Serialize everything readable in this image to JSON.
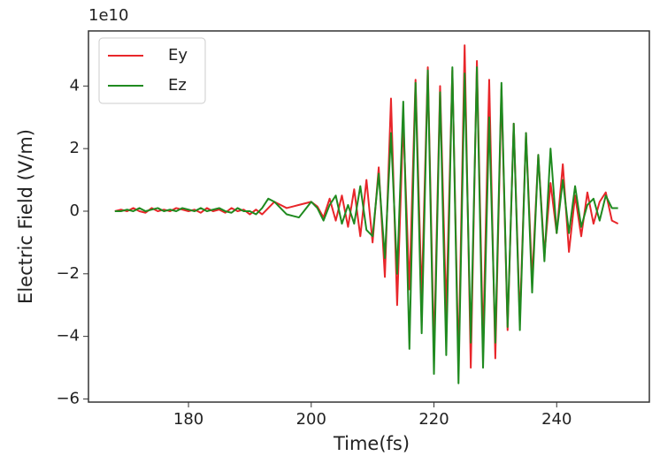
{
  "chart_data": {
    "type": "line",
    "x_label": "Time(fs)",
    "y_label": "Electric Field (V/m)",
    "y_offset_label": "1e10",
    "x": [
      168,
      169,
      170,
      171,
      172,
      173,
      174,
      175,
      176,
      177,
      178,
      179,
      180,
      181,
      182,
      183,
      184,
      185,
      186,
      187,
      188,
      189,
      190,
      191,
      192,
      193,
      194,
      195,
      196,
      197,
      198,
      199,
      200,
      201,
      202,
      203,
      204,
      205,
      206,
      207,
      208,
      209,
      210,
      211,
      212,
      213,
      214,
      215,
      216,
      217,
      218,
      219,
      220,
      221,
      222,
      223,
      224,
      225,
      226,
      227,
      228,
      229,
      230,
      231,
      232,
      233,
      234,
      235,
      236,
      237,
      238,
      239,
      240,
      241,
      242,
      243,
      244,
      245,
      246,
      247,
      248,
      249,
      250
    ],
    "series": [
      {
        "name": "Ey",
        "color": "#e8262a",
        "values": [
          0,
          0.05,
          0,
          0.1,
          0,
          -0.05,
          0.1,
          0,
          0.05,
          0,
          0.1,
          0.05,
          0,
          0.05,
          -0.05,
          0.1,
          0,
          0.05,
          -0.05,
          0.1,
          0,
          0.05,
          -0.1,
          0.05,
          -0.1,
          0.1,
          0.3,
          0.2,
          0.1,
          0.15,
          0.2,
          0.25,
          0.3,
          0.15,
          -0.2,
          0.4,
          -0.3,
          0.5,
          -0.5,
          0.7,
          -0.8,
          1.0,
          -1.0,
          1.4,
          -2.1,
          3.6,
          -3.0,
          2.9,
          -2.5,
          4.2,
          -2.8,
          4.6,
          -4.5,
          4.0,
          -3.3,
          4.5,
          -4.9,
          5.3,
          -5.0,
          4.8,
          -4.3,
          4.2,
          -4.7,
          3.9,
          -3.8,
          2.8,
          -3.5,
          2.5,
          -2.2,
          1.8,
          -1.4,
          0.9,
          -0.7,
          1.5,
          -1.3,
          0.5,
          -0.8,
          0.6,
          -0.4,
          0.3,
          0.6,
          -0.3,
          -0.4
        ]
      },
      {
        "name": "Ez",
        "color": "#1f8a1f",
        "values": [
          0,
          0,
          0.05,
          0,
          0.1,
          0,
          0.05,
          0.1,
          0,
          0.05,
          0,
          0.1,
          0.05,
          0,
          0.1,
          0,
          0.05,
          0.1,
          0,
          -0.05,
          0.1,
          0,
          0,
          -0.1,
          0.1,
          0.4,
          0.3,
          0.1,
          -0.1,
          -0.15,
          -0.2,
          0.05,
          0.3,
          0.1,
          -0.3,
          0.2,
          0.5,
          -0.4,
          0.2,
          -0.4,
          0.8,
          -0.6,
          -0.8,
          1.2,
          -1.5,
          2.5,
          -2.0,
          3.5,
          -4.4,
          4.1,
          -3.9,
          4.5,
          -5.2,
          3.8,
          -4.6,
          4.6,
          -5.5,
          4.4,
          -4.2,
          4.6,
          -5.0,
          3.0,
          -4.2,
          4.1,
          -3.7,
          2.8,
          -3.8,
          2.5,
          -2.6,
          1.8,
          -1.6,
          2.0,
          -0.7,
          1.0,
          -0.7,
          0.8,
          -0.5,
          0.2,
          0.4,
          -0.3,
          0.5,
          0.1,
          0.1
        ]
      }
    ],
    "xlim": [
      163.7,
      255.1
    ],
    "ylim": [
      -6.1,
      5.76
    ],
    "xticks": [
      180,
      200,
      220,
      240
    ],
    "yticks": [
      {
        "value": -6,
        "label": "−6"
      },
      {
        "value": -4,
        "label": "−4"
      },
      {
        "value": -2,
        "label": "−2"
      },
      0,
      2,
      4
    ],
    "legend": "upper left",
    "grid": false
  }
}
